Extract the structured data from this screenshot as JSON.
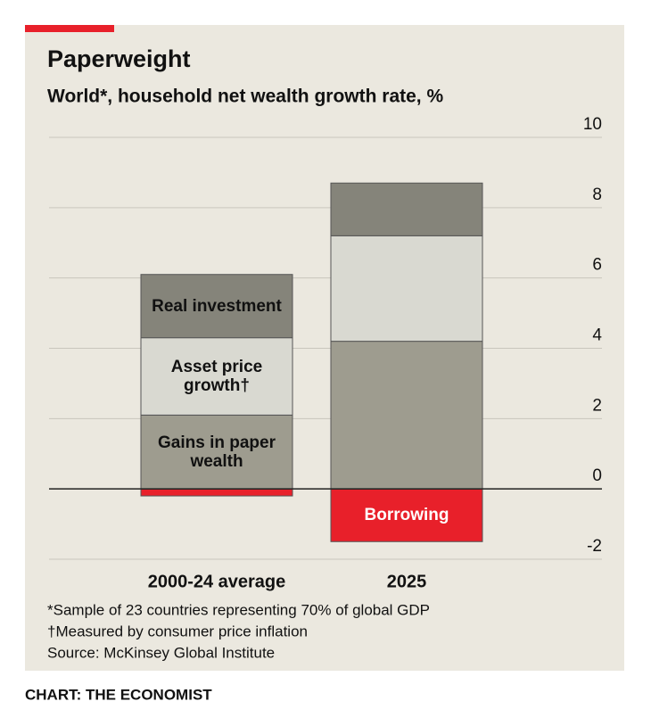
{
  "chart_data": {
    "type": "stacked_bar",
    "title": "Paperweight",
    "subtitle": "World*, household net wealth growth rate, %",
    "categories": [
      "2000-24 average",
      "2025"
    ],
    "series": [
      {
        "name": "Borrowing",
        "color": "#e8202a",
        "values": [
          -0.2,
          -1.5
        ]
      },
      {
        "name": "Gains in paper wealth",
        "color": "#9e9c8f",
        "values": [
          2.1,
          4.2
        ]
      },
      {
        "name": "Asset price growth†",
        "color": "#d9d9d1",
        "values": [
          2.2,
          3.0
        ]
      },
      {
        "name": "Real investment",
        "color": "#85847a",
        "values": [
          1.8,
          1.5
        ]
      }
    ],
    "ylim": [
      -2,
      10
    ],
    "yticks": [
      -2,
      0,
      2,
      4,
      6,
      8,
      10
    ],
    "grid": true,
    "footnotes": [
      "*Sample of 23 countries representing 70% of global GDP",
      "†Measured by consumer price inflation",
      "Source: McKinsey Global Institute"
    ],
    "credit": "CHART: THE ECONOMIST"
  }
}
